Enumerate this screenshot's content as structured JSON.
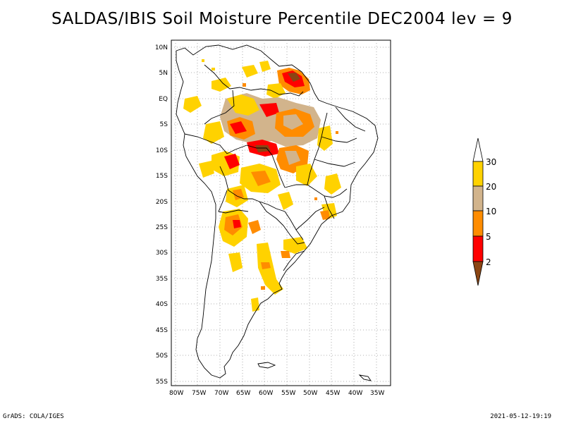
{
  "title": "SALDAS/IBIS Soil Moisture Percentile DEC2004 lev = 9",
  "footer": {
    "left": "GrADS: COLA/IGES",
    "right": "2021-05-12-19:19"
  },
  "map": {
    "region": "South America",
    "lon_range": [
      -81,
      -30
    ],
    "lat_range": [
      -56,
      11
    ],
    "lon_ticks": [
      "80W",
      "75W",
      "70W",
      "65W",
      "60W",
      "55W",
      "50W",
      "45W",
      "40W",
      "35W"
    ],
    "lat_ticks": [
      "10N",
      "5N",
      "EQ",
      "5S",
      "10S",
      "15S",
      "20S",
      "25S",
      "30S",
      "35S",
      "40S",
      "45S",
      "50S",
      "55S"
    ],
    "grid_lines": "dotted"
  },
  "colorbar": {
    "labels": [
      "30",
      "20",
      "10",
      "5",
      "2"
    ],
    "colors": {
      "above_30": "#ffffff",
      "20_30": "#ffd200",
      "10_20": "#d2b48c",
      "5_10": "#ff8c00",
      "2_5": "#ff0000",
      "below_2": "#8b4513"
    }
  }
}
